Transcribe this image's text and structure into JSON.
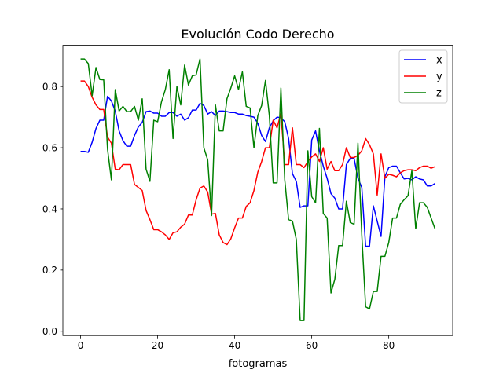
{
  "chart_data": {
    "type": "line",
    "title": "Evolución Codo Derecho",
    "xlabel": "fotogramas",
    "ylabel": "",
    "xlim": [
      -4.6,
      96.6
    ],
    "ylim": [
      -0.014,
      0.935
    ],
    "xticks": [
      0,
      20,
      40,
      60,
      80
    ],
    "yticks": [
      0.0,
      0.2,
      0.4,
      0.6,
      0.8
    ],
    "ytick_labels": [
      "0.0",
      "0.2",
      "0.4",
      "0.6",
      "0.8"
    ],
    "legend_position": "top-right",
    "x": [
      0,
      1,
      2,
      3,
      4,
      5,
      6,
      7,
      8,
      9,
      10,
      11,
      12,
      13,
      14,
      15,
      16,
      17,
      18,
      19,
      20,
      21,
      22,
      23,
      24,
      25,
      26,
      27,
      28,
      29,
      30,
      31,
      32,
      33,
      34,
      35,
      36,
      37,
      38,
      39,
      40,
      41,
      42,
      43,
      44,
      45,
      46,
      47,
      48,
      49,
      50,
      51,
      52,
      53,
      54,
      55,
      56,
      57,
      58,
      59,
      60,
      61,
      62,
      63,
      64,
      65,
      66,
      67,
      68,
      69,
      70,
      71,
      72,
      73,
      74,
      75,
      76,
      77,
      78,
      79,
      80,
      81,
      82,
      83,
      84,
      85,
      86,
      87,
      88,
      89,
      90,
      91,
      92
    ],
    "series": [
      {
        "name": "x",
        "color": "#0000ff",
        "values": [
          0.588,
          0.588,
          0.585,
          0.618,
          0.663,
          0.69,
          0.69,
          0.768,
          0.753,
          0.72,
          0.655,
          0.623,
          0.605,
          0.605,
          0.64,
          0.668,
          0.683,
          0.718,
          0.72,
          0.713,
          0.713,
          0.703,
          0.703,
          0.715,
          0.715,
          0.703,
          0.71,
          0.69,
          0.698,
          0.723,
          0.723,
          0.745,
          0.738,
          0.71,
          0.718,
          0.705,
          0.72,
          0.72,
          0.718,
          0.715,
          0.715,
          0.71,
          0.71,
          0.705,
          0.703,
          0.7,
          0.68,
          0.64,
          0.62,
          0.665,
          0.688,
          0.7,
          0.698,
          0.685,
          0.63,
          0.515,
          0.49,
          0.405,
          0.41,
          0.41,
          0.625,
          0.655,
          0.59,
          0.54,
          0.5,
          0.45,
          0.435,
          0.4,
          0.4,
          0.545,
          0.565,
          0.565,
          0.5,
          0.47,
          0.278,
          0.278,
          0.41,
          0.36,
          0.31,
          0.505,
          0.535,
          0.54,
          0.54,
          0.518,
          0.498,
          0.5,
          0.495,
          0.505,
          0.498,
          0.495,
          0.475,
          0.475,
          0.483
        ]
      },
      {
        "name": "y",
        "color": "#ff0000",
        "values": [
          0.818,
          0.818,
          0.8,
          0.765,
          0.74,
          0.725,
          0.725,
          0.635,
          0.615,
          0.53,
          0.528,
          0.545,
          0.545,
          0.545,
          0.48,
          0.47,
          0.46,
          0.395,
          0.365,
          0.332,
          0.332,
          0.325,
          0.315,
          0.3,
          0.322,
          0.325,
          0.34,
          0.35,
          0.38,
          0.38,
          0.43,
          0.468,
          0.475,
          0.455,
          0.383,
          0.385,
          0.315,
          0.29,
          0.283,
          0.302,
          0.338,
          0.37,
          0.37,
          0.408,
          0.42,
          0.46,
          0.52,
          0.555,
          0.6,
          0.6,
          0.69,
          0.665,
          0.712,
          0.545,
          0.545,
          0.665,
          0.545,
          0.545,
          0.535,
          0.555,
          0.57,
          0.58,
          0.555,
          0.6,
          0.53,
          0.555,
          0.525,
          0.525,
          0.545,
          0.6,
          0.568,
          0.568,
          0.575,
          0.59,
          0.63,
          0.61,
          0.58,
          0.445,
          0.58,
          0.5,
          0.513,
          0.51,
          0.505,
          0.518,
          0.525,
          0.528,
          0.528,
          0.525,
          0.535,
          0.54,
          0.54,
          0.533,
          0.538
        ]
      },
      {
        "name": "z",
        "color": "#008000",
        "values": [
          0.89,
          0.89,
          0.875,
          0.77,
          0.862,
          0.823,
          0.822,
          0.595,
          0.495,
          0.79,
          0.72,
          0.735,
          0.718,
          0.718,
          0.735,
          0.69,
          0.76,
          0.53,
          0.49,
          0.69,
          0.685,
          0.75,
          0.79,
          0.855,
          0.63,
          0.8,
          0.74,
          0.87,
          0.805,
          0.835,
          0.838,
          0.89,
          0.6,
          0.56,
          0.378,
          0.74,
          0.655,
          0.655,
          0.76,
          0.795,
          0.835,
          0.79,
          0.848,
          0.735,
          0.73,
          0.6,
          0.705,
          0.738,
          0.82,
          0.705,
          0.485,
          0.485,
          0.795,
          0.495,
          0.365,
          0.36,
          0.3,
          0.035,
          0.035,
          0.59,
          0.44,
          0.42,
          0.663,
          0.385,
          0.37,
          0.125,
          0.17,
          0.28,
          0.28,
          0.425,
          0.355,
          0.35,
          0.615,
          0.315,
          0.08,
          0.073,
          0.13,
          0.13,
          0.245,
          0.245,
          0.29,
          0.37,
          0.37,
          0.415,
          0.43,
          0.443,
          0.525,
          0.335,
          0.42,
          0.42,
          0.405,
          0.37,
          0.335
        ]
      }
    ]
  }
}
